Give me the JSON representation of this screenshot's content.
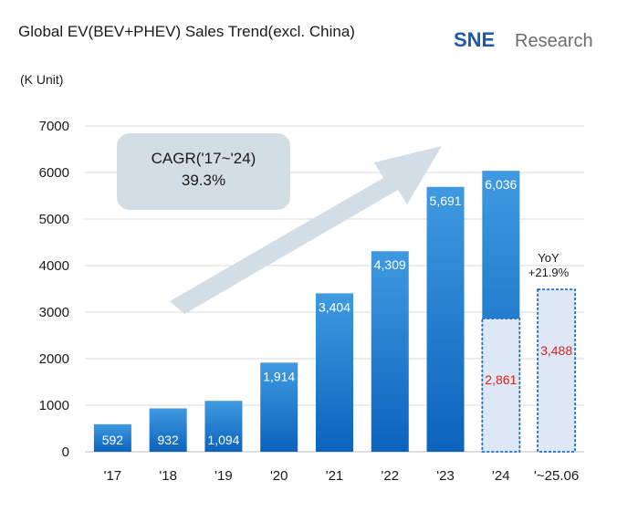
{
  "chart_data": {
    "type": "bar",
    "title": "Global EV(BEV+PHEV) Sales Trend(excl. China)",
    "ylabel": "(K Unit)",
    "ylim": [
      0,
      7000
    ],
    "yticks": [
      "0",
      "1000",
      "2000",
      "3000",
      "4000",
      "5000",
      "6000",
      "7000"
    ],
    "categories": [
      "'17",
      "'18",
      "'19",
      "'20",
      "'21",
      "'22",
      "'23",
      "'24",
      "'~25.06"
    ],
    "values": [
      592,
      932,
      1094,
      1914,
      3404,
      4309,
      5691,
      6036,
      null
    ],
    "value_labels": [
      "592",
      "932",
      "1,094",
      "1,914",
      "3,404",
      "4,309",
      "5,691",
      "6,036",
      ""
    ],
    "half_year": {
      "categories": [
        "'24",
        "'~25.06"
      ],
      "values": [
        2861,
        3488
      ],
      "labels": [
        "2,861",
        "3,488"
      ],
      "color": "#e0201b"
    },
    "annotations": {
      "cagr_line1": "CAGR('17~'24)",
      "cagr_line2": "39.3%",
      "yoy_line1": "YoY",
      "yoy_line2": "+21.9%"
    },
    "grid": true,
    "legend": "none"
  },
  "logo": {
    "brand": "SNE",
    "suffix": "Research"
  },
  "colors": {
    "bar_top": "#3f9ae0",
    "bar_bottom": "#0b63bd",
    "half_fill": "#dde7f6",
    "half_border": "#1d6fc6",
    "arrow": "#d2dde6",
    "cagr_box": "#d3dee4",
    "grid": "#d9d9d9"
  }
}
